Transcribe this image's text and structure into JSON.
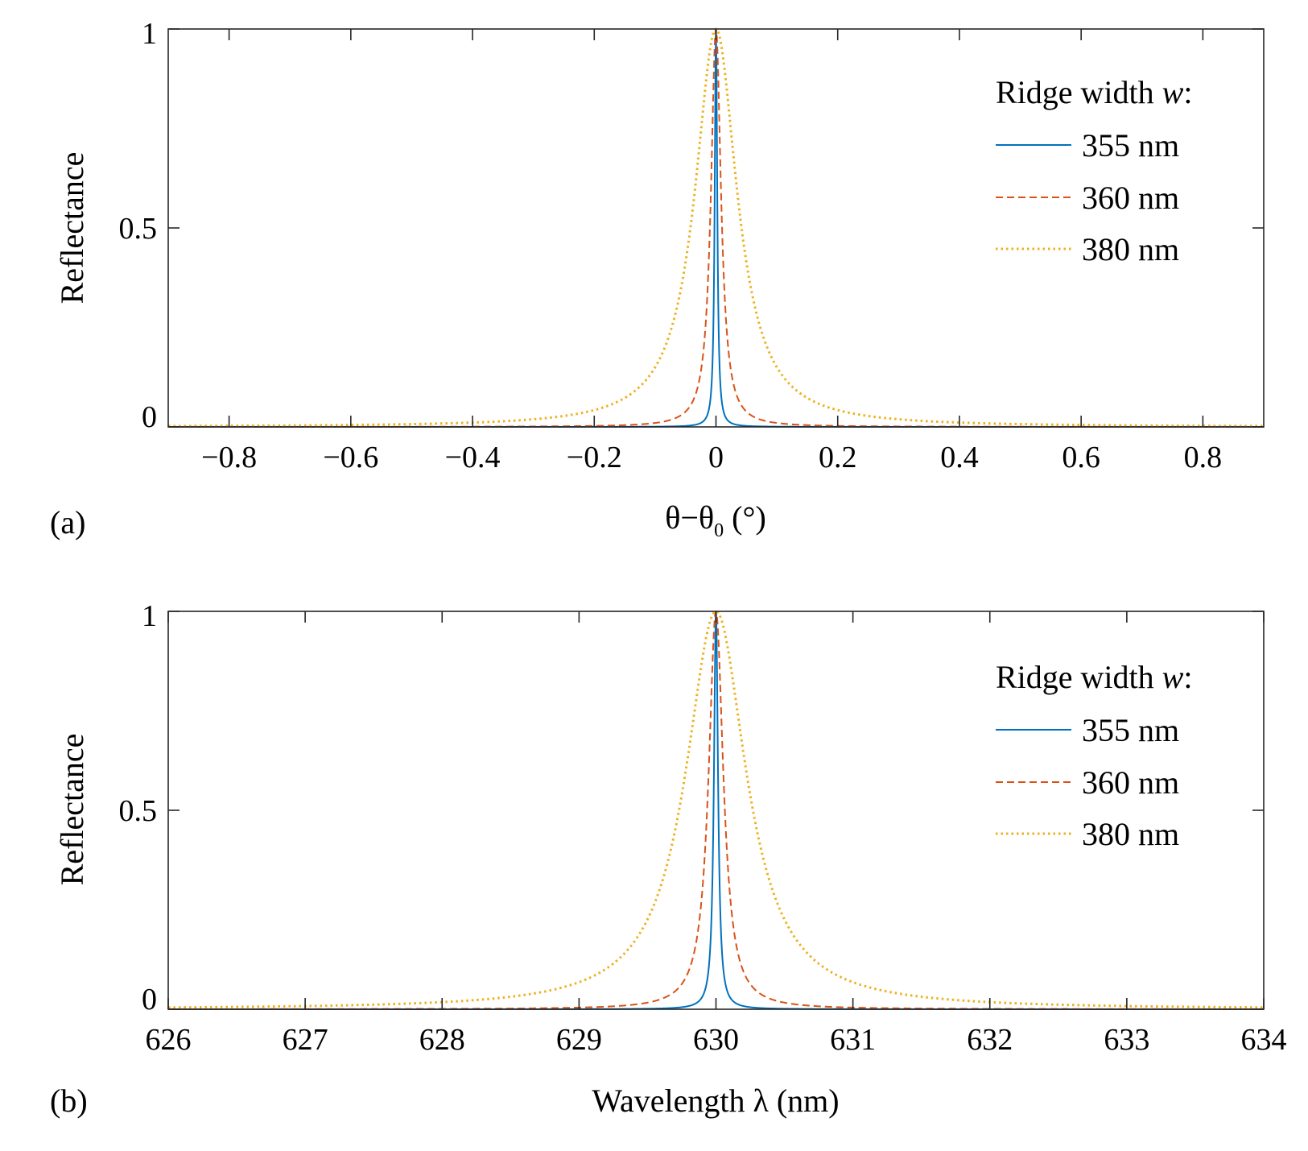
{
  "chart_data": [
    {
      "type": "line",
      "panel_label": "(a)",
      "xlabel": "θ−θ",
      "xlabel_sub": "0",
      "xlabel_suffix": " (°)",
      "ylabel": "Reflectance",
      "xlim": [
        -0.9,
        0.9
      ],
      "ylim": [
        0,
        1
      ],
      "xticks": [
        -0.8,
        -0.6,
        -0.4,
        -0.2,
        0,
        0.2,
        0.4,
        0.6,
        0.8
      ],
      "xtick_labels": [
        "−0.8",
        "−0.6",
        "−0.4",
        "−0.2",
        "0",
        "0.2",
        "0.4",
        "0.6",
        "0.8"
      ],
      "yticks": [
        0,
        0.5,
        1
      ],
      "ytick_labels": [
        "0",
        "0.5",
        "1"
      ],
      "legend": {
        "title": "Ridge width",
        "title_var": "w",
        "title_suffix": ":",
        "position": "top-right"
      },
      "series": [
        {
          "name": "355 nm",
          "color": "#0072BD",
          "style": "solid",
          "center": 0,
          "hwhm": 0.0025
        },
        {
          "name": "360 nm",
          "color": "#D95319",
          "style": "dashed",
          "center": 0,
          "hwhm": 0.01
        },
        {
          "name": "380 nm",
          "color": "#EDB120",
          "style": "dotted",
          "center": 0,
          "hwhm": 0.042
        }
      ]
    },
    {
      "type": "line",
      "panel_label": "(b)",
      "xlabel": "Wavelength λ (nm)",
      "ylabel": "Reflectance",
      "xlim": [
        626,
        634
      ],
      "ylim": [
        0,
        1
      ],
      "xticks": [
        626,
        627,
        628,
        629,
        630,
        631,
        632,
        633,
        634
      ],
      "xtick_labels": [
        "626",
        "627",
        "628",
        "629",
        "630",
        "631",
        "632",
        "633",
        "634"
      ],
      "yticks": [
        0,
        0.5,
        1
      ],
      "ytick_labels": [
        "0",
        "0.5",
        "1"
      ],
      "legend": {
        "title": "Ridge width",
        "title_var": "w",
        "title_suffix": ":",
        "position": "top-right"
      },
      "series": [
        {
          "name": "355 nm",
          "color": "#0072BD",
          "style": "solid",
          "center": 630,
          "hwhm": 0.018
        },
        {
          "name": "360 nm",
          "color": "#D95319",
          "style": "dashed",
          "center": 630,
          "hwhm": 0.065
        },
        {
          "name": "380 nm",
          "color": "#EDB120",
          "style": "dotted",
          "center": 630,
          "hwhm": 0.27
        }
      ]
    }
  ]
}
